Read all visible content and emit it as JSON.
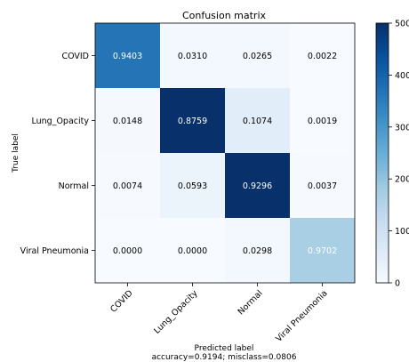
{
  "chart_data": {
    "type": "heatmap",
    "title": "Confusion matrix",
    "xlabel": "Predicted label",
    "xlabel_sub": "accuracy=0.9194; misclass=0.0806",
    "ylabel": "True label",
    "categories": [
      "COVID",
      "Lung_Opacity",
      "Normal",
      "Viral Pneumonia"
    ],
    "values": [
      [
        "0.9403",
        "0.0310",
        "0.0265",
        "0.0022"
      ],
      [
        "0.0148",
        "0.8759",
        "0.1074",
        "0.0019"
      ],
      [
        "0.0074",
        "0.0593",
        "0.9296",
        "0.0037"
      ],
      [
        "0.0000",
        "0.0000",
        "0.0298",
        "0.9702"
      ]
    ],
    "cell_color_levels": [
      [
        370,
        12,
        10,
        1
      ],
      [
        6,
        500,
        55,
        1
      ],
      [
        3,
        30,
        500,
        2
      ],
      [
        0,
        0,
        12,
        170
      ]
    ],
    "colorbar": {
      "colormap": "Blues",
      "range": [
        0,
        500
      ],
      "ticks": [
        "0",
        "100",
        "200",
        "300",
        "400",
        "500"
      ]
    }
  }
}
